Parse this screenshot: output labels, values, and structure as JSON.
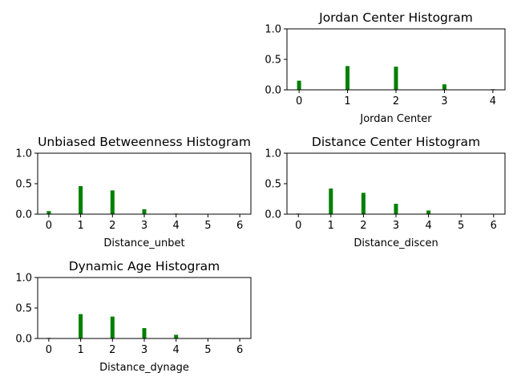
{
  "chart_data": [
    {
      "id": "jordan",
      "type": "bar",
      "title": "Jordan Center Histogram",
      "xlabel": "Jordan Center",
      "ylabel": "",
      "x": [
        0,
        1,
        2,
        3,
        4
      ],
      "values": [
        0.15,
        0.39,
        0.38,
        0.09,
        0.01
      ],
      "xlim": [
        -0.25,
        4.25
      ],
      "ylim": [
        0,
        1.0
      ],
      "xticks": [
        "0",
        "1",
        "2",
        "3",
        "4"
      ],
      "yticks": [
        "0.0",
        "0.5",
        "1.0"
      ],
      "color": "#008000",
      "grid": false
    },
    {
      "id": "unbet",
      "type": "bar",
      "title": "Unbiased Betweenness Histogram",
      "xlabel": "Distance_unbet",
      "ylabel": "",
      "x": [
        0,
        1,
        2,
        3,
        4,
        5,
        6
      ],
      "values": [
        0.05,
        0.46,
        0.39,
        0.08,
        0.01,
        0.005,
        0.005
      ],
      "xlim": [
        -0.35,
        6.35
      ],
      "ylim": [
        0,
        1.0
      ],
      "xticks": [
        "0",
        "1",
        "2",
        "3",
        "4",
        "5",
        "6"
      ],
      "yticks": [
        "0.0",
        "0.5",
        "1.0"
      ],
      "color": "#008000",
      "grid": false
    },
    {
      "id": "discen",
      "type": "bar",
      "title": "Distance Center Histogram",
      "xlabel": "Distance_discen",
      "ylabel": "",
      "x": [
        0,
        1,
        2,
        3,
        4,
        5,
        6
      ],
      "values": [
        0.01,
        0.42,
        0.35,
        0.17,
        0.06,
        0.005,
        0.005
      ],
      "xlim": [
        -0.35,
        6.35
      ],
      "ylim": [
        0,
        1.0
      ],
      "xticks": [
        "0",
        "1",
        "2",
        "3",
        "4",
        "5",
        "6"
      ],
      "yticks": [
        "0.0",
        "0.5",
        "1.0"
      ],
      "color": "#008000",
      "grid": false
    },
    {
      "id": "dynage",
      "type": "bar",
      "title": "Dynamic Age Histogram",
      "xlabel": "Distance_dynage",
      "ylabel": "",
      "x": [
        0,
        1,
        2,
        3,
        4,
        5,
        6
      ],
      "values": [
        0.01,
        0.4,
        0.36,
        0.17,
        0.06,
        0.005,
        0.005
      ],
      "xlim": [
        -0.35,
        6.35
      ],
      "ylim": [
        0,
        1.0
      ],
      "xticks": [
        "0",
        "1",
        "2",
        "3",
        "4",
        "5",
        "6"
      ],
      "yticks": [
        "0.0",
        "0.5",
        "1.0"
      ],
      "color": "#008000",
      "grid": false
    }
  ]
}
